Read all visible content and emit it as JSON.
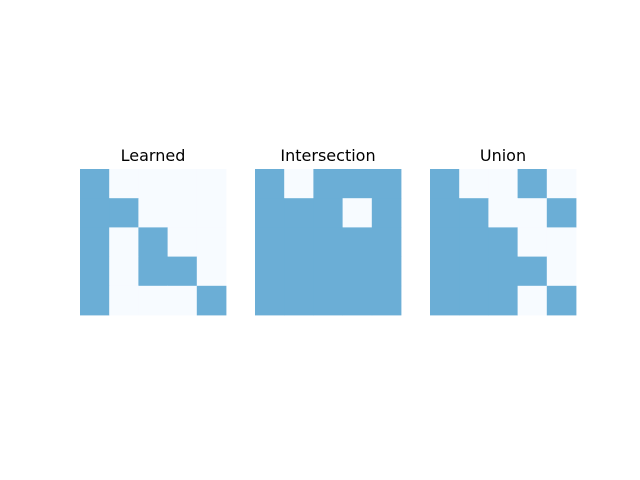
{
  "chart_data": [
    {
      "type": "heatmap",
      "title": "Learned",
      "rows": 5,
      "cols": 5,
      "values": [
        [
          1,
          0,
          0,
          0,
          0
        ],
        [
          1,
          1,
          0,
          0,
          0
        ],
        [
          1,
          0,
          1,
          0,
          0
        ],
        [
          1,
          0,
          1,
          1,
          0
        ],
        [
          1,
          0,
          0,
          0,
          1
        ]
      ]
    },
    {
      "type": "heatmap",
      "title": "Intersection",
      "rows": 5,
      "cols": 5,
      "values": [
        [
          1,
          0,
          1,
          1,
          1
        ],
        [
          1,
          1,
          1,
          0,
          1
        ],
        [
          1,
          1,
          1,
          1,
          1
        ],
        [
          1,
          1,
          1,
          1,
          1
        ],
        [
          1,
          1,
          1,
          1,
          1
        ]
      ]
    },
    {
      "type": "heatmap",
      "title": "Union",
      "rows": 5,
      "cols": 5,
      "values": [
        [
          1,
          0,
          0,
          1,
          0
        ],
        [
          1,
          1,
          0,
          0,
          1
        ],
        [
          1,
          1,
          1,
          0,
          0
        ],
        [
          1,
          1,
          1,
          1,
          0
        ],
        [
          1,
          1,
          1,
          0,
          1
        ]
      ]
    }
  ],
  "colors": {
    "filled": "#6baed6",
    "empty": "#f7fbff"
  }
}
